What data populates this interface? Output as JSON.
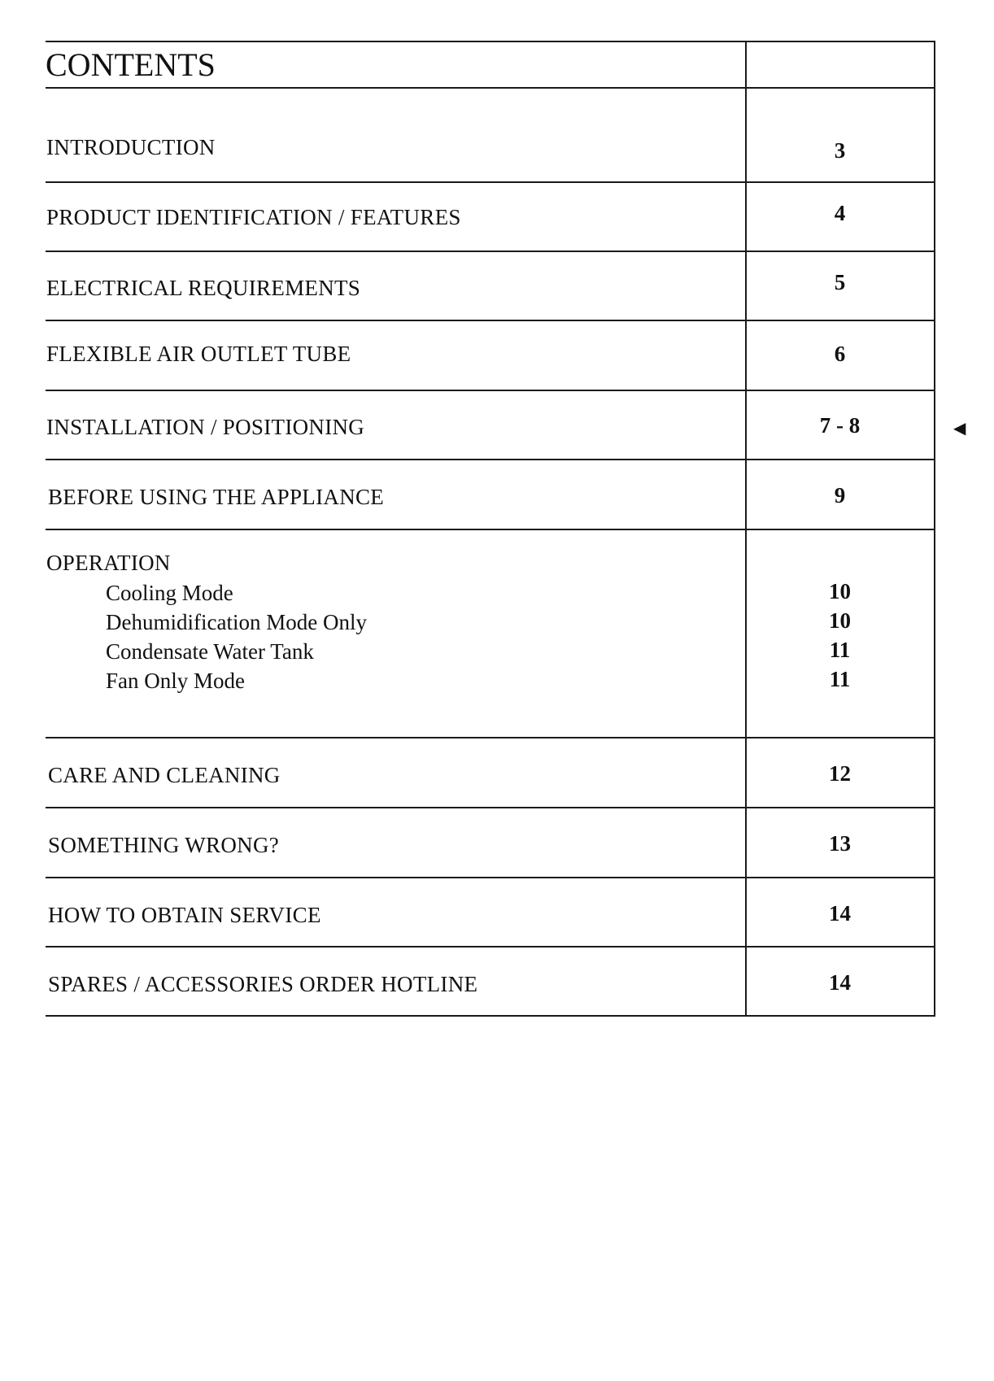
{
  "title": "CONTENTS",
  "entries": [
    {
      "label": "INTRODUCTION",
      "page": "3"
    },
    {
      "label": "PRODUCT IDENTIFICATION / FEATURES",
      "page": "4"
    },
    {
      "label": "ELECTRICAL REQUIREMENTS",
      "page": "5"
    },
    {
      "label": "FLEXIBLE AIR OUTLET TUBE",
      "page": "6"
    },
    {
      "label": "INSTALLATION / POSITIONING",
      "page": "7 - 8"
    },
    {
      "label": "BEFORE USING THE APPLIANCE",
      "page": "9"
    },
    {
      "label": "OPERATION",
      "page": ""
    },
    {
      "label": "CARE AND CLEANING",
      "page": "12"
    },
    {
      "label": "SOMETHING WRONG?",
      "page": "13"
    },
    {
      "label": "HOW TO OBTAIN SERVICE",
      "page": "14"
    },
    {
      "label": "SPARES / ACCESSORIES ORDER HOTLINE",
      "page": "14"
    }
  ],
  "operation_sub": [
    {
      "label": "Cooling Mode",
      "page": "10"
    },
    {
      "label": "Dehumidification Mode Only",
      "page": "10"
    },
    {
      "label": "Condensate Water Tank",
      "page": "11"
    },
    {
      "label": "Fan Only Mode",
      "page": "11"
    }
  ],
  "marker_icon": "triangle-left"
}
